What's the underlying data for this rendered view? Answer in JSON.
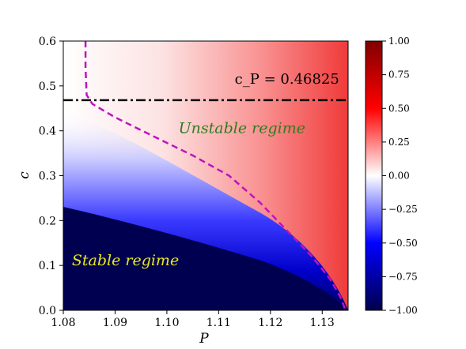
{
  "chart_data": {
    "type": "heatmap",
    "title": "",
    "xlabel": "P",
    "ylabel": "c",
    "xlim": [
      1.08,
      1.135
    ],
    "ylim": [
      0.0,
      0.6
    ],
    "x_ticks": [
      "1.08",
      "1.09",
      "1.10",
      "1.11",
      "1.12",
      "1.13"
    ],
    "y_ticks": [
      "0.0",
      "0.1",
      "0.2",
      "0.3",
      "0.4",
      "0.5",
      "0.6"
    ],
    "colorbar": {
      "colormap": "seismic",
      "range": [
        -1.0,
        1.0
      ],
      "ticks": [
        "1.00",
        "0.75",
        "0.50",
        "0.25",
        "0.00",
        "−0.25",
        "−0.50",
        "−0.75",
        "−1.00"
      ]
    },
    "series": [
      {
        "style": "dashed",
        "color": "#bf12bf",
        "points": [
          [
            1.0843,
            0.6
          ],
          [
            1.0843,
            0.54
          ],
          [
            1.0845,
            0.48
          ],
          [
            1.0856,
            0.46
          ],
          [
            1.09,
            0.43
          ],
          [
            1.097,
            0.39
          ],
          [
            1.105,
            0.345
          ],
          [
            1.112,
            0.3
          ],
          [
            1.118,
            0.24
          ],
          [
            1.123,
            0.18
          ],
          [
            1.128,
            0.12
          ],
          [
            1.1315,
            0.07
          ],
          [
            1.1335,
            0.03
          ],
          [
            1.1345,
            0.0
          ]
        ]
      },
      {
        "style": "dashdot",
        "color": "#000000",
        "y": 0.46825
      }
    ],
    "annotations": [
      {
        "id": "cp",
        "text": "c_P = 0.46825",
        "x": 1.1232,
        "y": 0.505
      },
      {
        "id": "unstable",
        "text": "Unstable regime",
        "x": 1.1145,
        "y": 0.395
      },
      {
        "id": "stable",
        "text": "Stable regime",
        "x": 1.092,
        "y": 0.1
      }
    ]
  }
}
